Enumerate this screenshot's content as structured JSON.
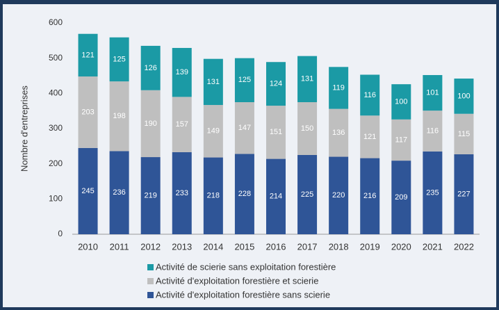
{
  "chart_data": {
    "type": "stacked_bar",
    "y_label": "Nombre d'entreprises",
    "categories": [
      "2010",
      "2011",
      "2012",
      "2013",
      "2014",
      "2015",
      "2016",
      "2017",
      "2018",
      "2019",
      "2020",
      "2021",
      "2022"
    ],
    "series": [
      {
        "name": "Activité d'exploitation forestière sans scierie",
        "color": "#2f5597",
        "values": [
          245,
          236,
          219,
          233,
          218,
          228,
          214,
          225,
          220,
          216,
          209,
          235,
          227
        ]
      },
      {
        "name": "Activité d'exploitation forestière et scierie",
        "color": "#bfbfbf",
        "values": [
          203,
          198,
          190,
          157,
          149,
          147,
          151,
          150,
          136,
          121,
          117,
          116,
          115
        ]
      },
      {
        "name": "Activité de scierie sans exploitation forestière",
        "color": "#1b9aa5",
        "values": [
          121,
          125,
          126,
          139,
          131,
          125,
          124,
          131,
          119,
          116,
          100,
          101,
          100
        ]
      }
    ],
    "ylim": [
      0,
      600
    ],
    "yticks": [
      0,
      100,
      200,
      300,
      400,
      500,
      600
    ],
    "grid": false,
    "legend": "bottom"
  }
}
